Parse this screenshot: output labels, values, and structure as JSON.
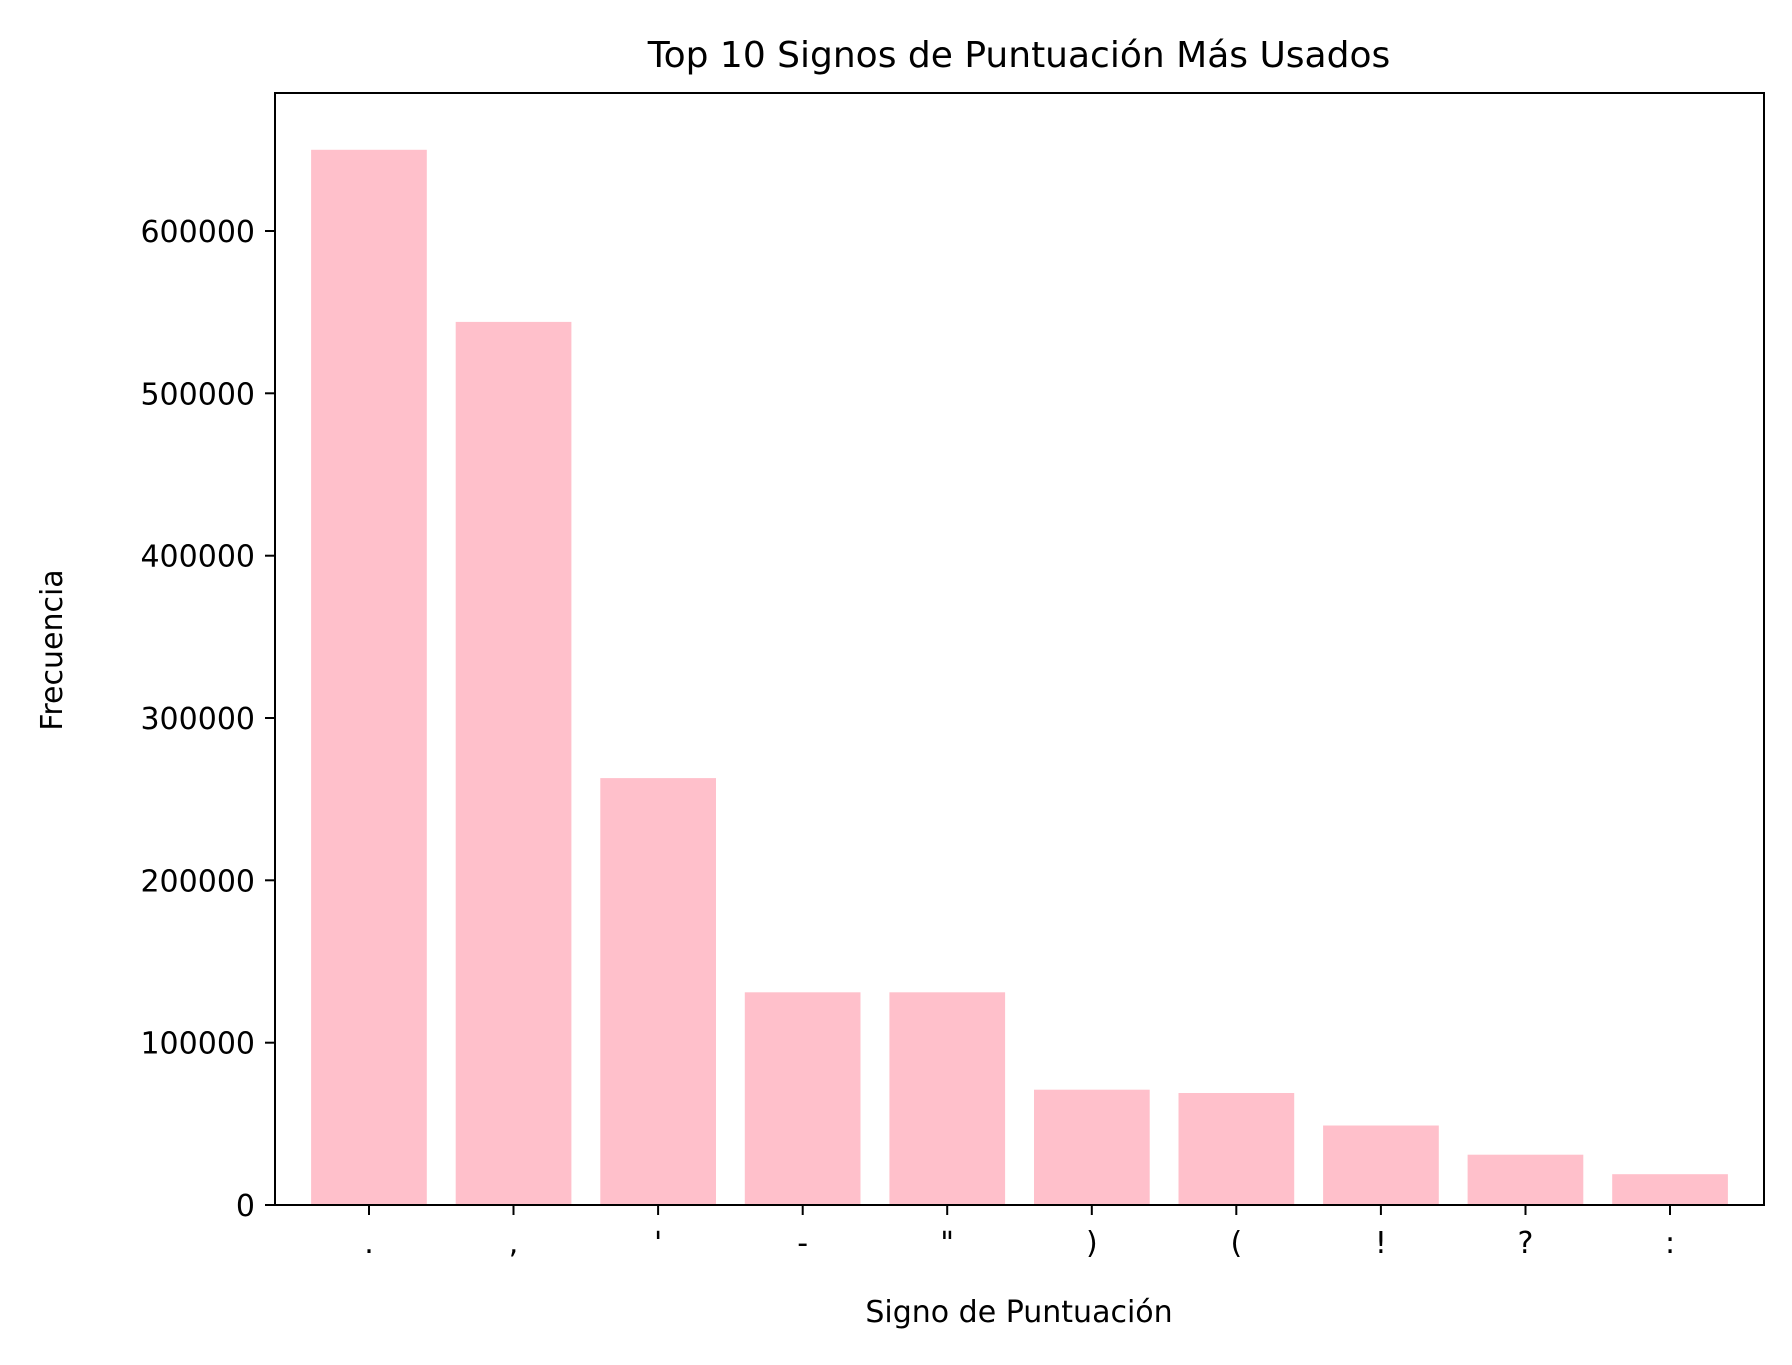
{
  "chart_data": {
    "type": "bar",
    "title": "Top 10 Signos de Puntuación Más Usados",
    "xlabel": "Signo de Puntuación",
    "ylabel": "Frecuencia",
    "categories": [
      ".",
      ",",
      "'",
      "-",
      "\"",
      ")",
      "(",
      "!",
      "?",
      ":"
    ],
    "values": [
      650000,
      544000,
      263000,
      131000,
      131000,
      71000,
      69000,
      49000,
      31000,
      19000
    ],
    "ylim": [
      0,
      685000
    ],
    "yticks": [
      0,
      100000,
      200000,
      300000,
      400000,
      500000,
      600000
    ],
    "grid": false,
    "legend": "none",
    "bar_color": "#ffc0cb"
  }
}
